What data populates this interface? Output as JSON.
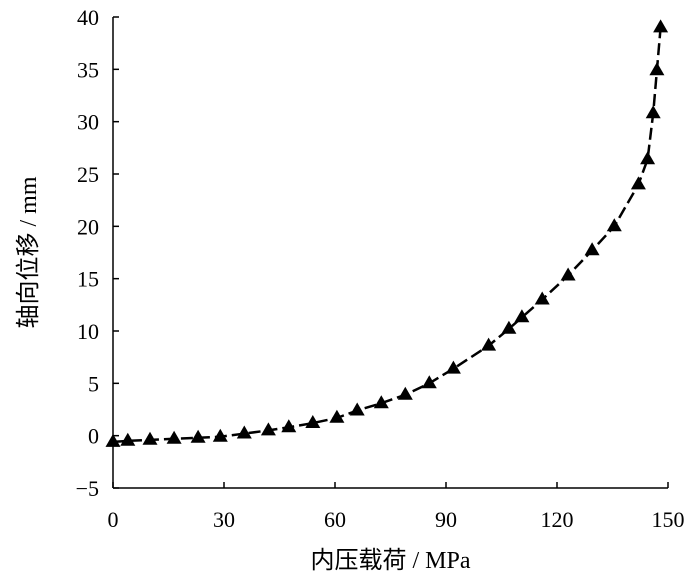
{
  "chart_data": {
    "type": "line",
    "title": "",
    "xlabel": "内压载荷 / MPa",
    "ylabel": "轴向位移 / mm",
    "xlim": [
      0,
      150
    ],
    "ylim": [
      -5,
      40
    ],
    "xticks": [
      0,
      30,
      60,
      90,
      120,
      150
    ],
    "yticks": [
      -5,
      0,
      5,
      10,
      15,
      20,
      25,
      30,
      35,
      40
    ],
    "xtick_labels": [
      "0",
      "30",
      "60",
      "90",
      "120",
      "150"
    ],
    "ytick_labels": [
      "−5",
      "0",
      "5",
      "10",
      "15",
      "20",
      "25",
      "30",
      "35",
      "40"
    ],
    "grid": false,
    "legend": "none",
    "series": [
      {
        "marker": "filled-triangle",
        "line_style": "dashed",
        "color": "#000000",
        "x": [
          0,
          4,
          10,
          16.5,
          23,
          29,
          35.5,
          42,
          47.5,
          54,
          60.5,
          66,
          72.5,
          79,
          85.5,
          92,
          101.5,
          107,
          110.5,
          116,
          123,
          129.5,
          135.5,
          142,
          144.5,
          146,
          147,
          148
        ],
        "y": [
          -0.6,
          -0.5,
          -0.4,
          -0.3,
          -0.2,
          -0.1,
          0.2,
          0.5,
          0.8,
          1.2,
          1.7,
          2.4,
          3.1,
          3.9,
          5.0,
          6.4,
          8.6,
          10.2,
          11.3,
          13.0,
          15.3,
          17.7,
          20.0,
          24.0,
          26.4,
          30.8,
          34.9,
          39.0
        ]
      }
    ]
  }
}
